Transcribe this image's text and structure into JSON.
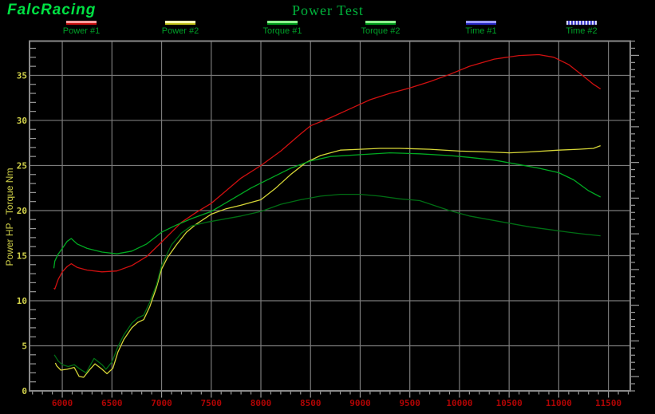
{
  "header": {
    "logo": "FalcRacing",
    "title": "Power Test"
  },
  "legend": [
    {
      "label": "Power #1",
      "swatch": "solid",
      "top": "#ff9c9c",
      "bottom": "#cc1010"
    },
    {
      "label": "Power #2",
      "swatch": "solid",
      "top": "#ffffb4",
      "bottom": "#c8c81e"
    },
    {
      "label": "Torque #1",
      "swatch": "solid",
      "top": "#8cf08c",
      "bottom": "#00a01e"
    },
    {
      "label": "Torque #2",
      "swatch": "solid",
      "top": "#8cf08c",
      "bottom": "#00a01e"
    },
    {
      "label": "Time #1",
      "swatch": "solid",
      "top": "#9898ff",
      "bottom": "#2a2ac8"
    },
    {
      "label": "Time #2",
      "swatch": "dotted",
      "top": "#d8d8ff",
      "bottom": "#4444cc"
    }
  ],
  "chart_data": {
    "type": "line",
    "title": "Power Test",
    "xlabel": "",
    "ylabel": "Power HP - Torque Nm",
    "xlim": [
      5670,
      11720
    ],
    "ylim": [
      0,
      38.8
    ],
    "x_ticks": [
      6000,
      6500,
      7000,
      7500,
      8000,
      8500,
      9000,
      9500,
      10000,
      10500,
      11000,
      11500
    ],
    "y_ticks": [
      0,
      5,
      10,
      15,
      20,
      25,
      30,
      35
    ],
    "x_minor_step": 100,
    "y_minor_step": 1,
    "grid": true,
    "legend_position": "top",
    "style": {
      "background": "#000000",
      "grid": "#7b7b7b",
      "frame": "#8a8a8a",
      "tick": "#9a9a9a",
      "x_labels": "#b00404",
      "y_labels": "#d2d24a"
    },
    "series": [
      {
        "name": "Power #1",
        "color": "#d01010",
        "points": [
          [
            5915,
            11.4
          ],
          [
            5925,
            11.3
          ],
          [
            5960,
            12.4
          ],
          [
            6000,
            13.2
          ],
          [
            6050,
            13.8
          ],
          [
            6090,
            14.1
          ],
          [
            6150,
            13.7
          ],
          [
            6250,
            13.4
          ],
          [
            6400,
            13.2
          ],
          [
            6550,
            13.3
          ],
          [
            6700,
            13.9
          ],
          [
            6850,
            14.9
          ],
          [
            7000,
            16.5
          ],
          [
            7100,
            17.6
          ],
          [
            7200,
            18.7
          ],
          [
            7350,
            19.8
          ],
          [
            7500,
            20.8
          ],
          [
            7650,
            22.2
          ],
          [
            7800,
            23.6
          ],
          [
            8000,
            25.0
          ],
          [
            8200,
            26.6
          ],
          [
            8400,
            28.5
          ],
          [
            8500,
            29.4
          ],
          [
            8700,
            30.3
          ],
          [
            8900,
            31.3
          ],
          [
            9100,
            32.3
          ],
          [
            9300,
            33.0
          ],
          [
            9500,
            33.6
          ],
          [
            9700,
            34.3
          ],
          [
            9900,
            35.1
          ],
          [
            10100,
            36.0
          ],
          [
            10350,
            36.8
          ],
          [
            10600,
            37.2
          ],
          [
            10800,
            37.3
          ],
          [
            10950,
            37.0
          ],
          [
            11100,
            36.2
          ],
          [
            11250,
            34.9
          ],
          [
            11350,
            34.0
          ],
          [
            11420,
            33.5
          ]
        ]
      },
      {
        "name": "Power #2",
        "color": "#d6d637",
        "points": [
          [
            5930,
            3.1
          ],
          [
            5942,
            2.8
          ],
          [
            5985,
            2.3
          ],
          [
            6050,
            2.4
          ],
          [
            6120,
            2.6
          ],
          [
            6170,
            1.6
          ],
          [
            6215,
            1.5
          ],
          [
            6280,
            2.4
          ],
          [
            6330,
            3.0
          ],
          [
            6400,
            2.4
          ],
          [
            6450,
            1.9
          ],
          [
            6510,
            2.5
          ],
          [
            6560,
            4.3
          ],
          [
            6620,
            5.7
          ],
          [
            6700,
            7.0
          ],
          [
            6760,
            7.6
          ],
          [
            6820,
            7.9
          ],
          [
            6880,
            9.3
          ],
          [
            6950,
            11.5
          ],
          [
            7000,
            13.5
          ],
          [
            7060,
            14.8
          ],
          [
            7150,
            16.2
          ],
          [
            7250,
            17.6
          ],
          [
            7350,
            18.5
          ],
          [
            7500,
            19.6
          ],
          [
            7650,
            20.2
          ],
          [
            7800,
            20.6
          ],
          [
            8000,
            21.2
          ],
          [
            8150,
            22.5
          ],
          [
            8300,
            24.0
          ],
          [
            8450,
            25.3
          ],
          [
            8600,
            26.1
          ],
          [
            8800,
            26.7
          ],
          [
            9000,
            26.8
          ],
          [
            9200,
            26.9
          ],
          [
            9400,
            26.9
          ],
          [
            9700,
            26.8
          ],
          [
            10000,
            26.6
          ],
          [
            10300,
            26.5
          ],
          [
            10500,
            26.4
          ],
          [
            10700,
            26.5
          ],
          [
            11000,
            26.7
          ],
          [
            11200,
            26.8
          ],
          [
            11350,
            26.9
          ],
          [
            11420,
            27.2
          ]
        ]
      },
      {
        "name": "Torque #1",
        "color": "#00aa22",
        "points": [
          [
            5915,
            13.6
          ],
          [
            5925,
            14.4
          ],
          [
            5955,
            15.1
          ],
          [
            6000,
            15.8
          ],
          [
            6050,
            16.6
          ],
          [
            6090,
            16.9
          ],
          [
            6150,
            16.3
          ],
          [
            6250,
            15.8
          ],
          [
            6400,
            15.4
          ],
          [
            6550,
            15.2
          ],
          [
            6700,
            15.5
          ],
          [
            6850,
            16.3
          ],
          [
            7000,
            17.6
          ],
          [
            7150,
            18.4
          ],
          [
            7300,
            19.1
          ],
          [
            7500,
            19.9
          ],
          [
            7700,
            21.2
          ],
          [
            7900,
            22.5
          ],
          [
            8100,
            23.6
          ],
          [
            8300,
            24.7
          ],
          [
            8500,
            25.5
          ],
          [
            8700,
            26.0
          ],
          [
            9000,
            26.2
          ],
          [
            9300,
            26.4
          ],
          [
            9600,
            26.3
          ],
          [
            9900,
            26.1
          ],
          [
            10100,
            25.9
          ],
          [
            10350,
            25.6
          ],
          [
            10600,
            25.1
          ],
          [
            10800,
            24.7
          ],
          [
            11000,
            24.2
          ],
          [
            11150,
            23.4
          ],
          [
            11300,
            22.2
          ],
          [
            11420,
            21.5
          ]
        ]
      },
      {
        "name": "Torque #2",
        "color": "#006e14",
        "points": [
          [
            5920,
            4.0
          ],
          [
            5960,
            3.3
          ],
          [
            6000,
            2.9
          ],
          [
            6060,
            2.7
          ],
          [
            6120,
            2.9
          ],
          [
            6180,
            2.4
          ],
          [
            6240,
            2.0
          ],
          [
            6320,
            3.6
          ],
          [
            6400,
            2.9
          ],
          [
            6440,
            2.4
          ],
          [
            6500,
            3.2
          ],
          [
            6560,
            4.9
          ],
          [
            6620,
            6.2
          ],
          [
            6700,
            7.5
          ],
          [
            6760,
            8.1
          ],
          [
            6820,
            8.4
          ],
          [
            6880,
            9.8
          ],
          [
            6950,
            11.8
          ],
          [
            7000,
            13.9
          ],
          [
            7100,
            16.2
          ],
          [
            7200,
            17.5
          ],
          [
            7300,
            18.3
          ],
          [
            7450,
            18.7
          ],
          [
            7600,
            19.0
          ],
          [
            7800,
            19.4
          ],
          [
            8000,
            19.9
          ],
          [
            8200,
            20.7
          ],
          [
            8400,
            21.2
          ],
          [
            8600,
            21.6
          ],
          [
            8800,
            21.8
          ],
          [
            9000,
            21.8
          ],
          [
            9200,
            21.6
          ],
          [
            9400,
            21.3
          ],
          [
            9600,
            21.1
          ],
          [
            9900,
            20.0
          ],
          [
            10100,
            19.4
          ],
          [
            10300,
            19.0
          ],
          [
            10500,
            18.6
          ],
          [
            10700,
            18.2
          ],
          [
            10900,
            17.9
          ],
          [
            11100,
            17.6
          ],
          [
            11250,
            17.4
          ],
          [
            11420,
            17.2
          ]
        ]
      },
      {
        "name": "Time #1",
        "color": "#4040d0",
        "points": []
      },
      {
        "name": "Time #2",
        "color": "#8888e0",
        "points": []
      }
    ]
  }
}
